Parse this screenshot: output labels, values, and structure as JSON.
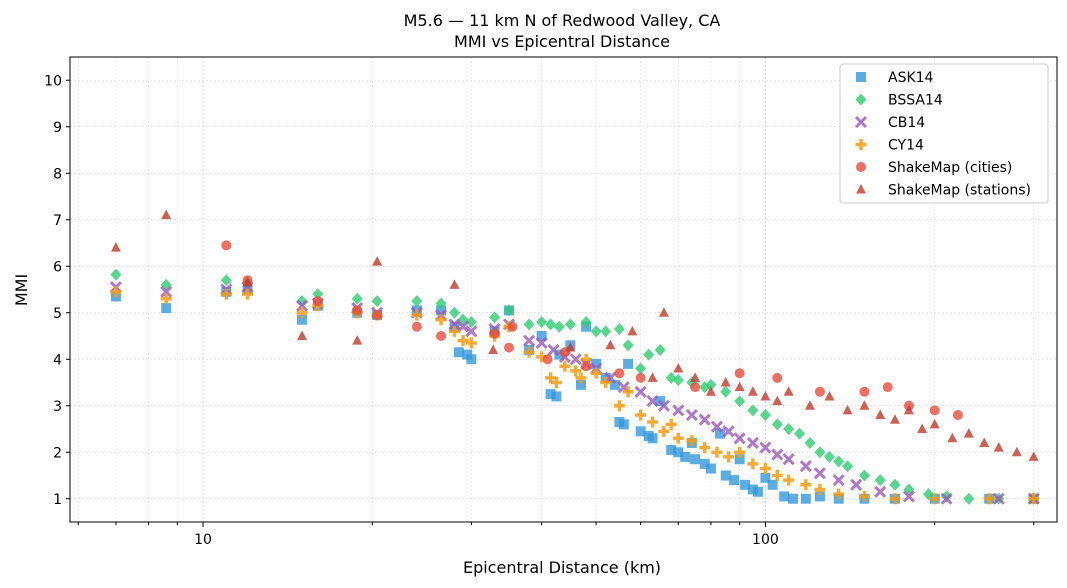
{
  "chart_data": {
    "type": "scatter",
    "title": "M5.6 — 11 km N of Redwood Valley, CA",
    "subtitle": "MMI vs Epicentral Distance",
    "xlabel": "Epicentral Distance (km)",
    "ylabel": "MMI",
    "xscale": "log",
    "xlim": [
      5.8,
      330
    ],
    "ylim": [
      0.5,
      10.5
    ],
    "xticks": [
      {
        "value": 10,
        "label": "10"
      },
      {
        "value": 100,
        "label": "100"
      }
    ],
    "yticks": [
      1,
      2,
      3,
      4,
      5,
      6,
      7,
      8,
      9,
      10
    ],
    "grid": true,
    "legend_position": "top-right",
    "series": [
      {
        "name": "ASK14",
        "marker": "square",
        "color": "#3498db",
        "points": [
          [
            7.0,
            5.35
          ],
          [
            8.6,
            5.1
          ],
          [
            11.0,
            5.45
          ],
          [
            12.0,
            5.5
          ],
          [
            15.0,
            4.85
          ],
          [
            16.0,
            5.15
          ],
          [
            18.8,
            5.0
          ],
          [
            20.4,
            4.95
          ],
          [
            24.0,
            5.05
          ],
          [
            26.5,
            5.05
          ],
          [
            28.0,
            4.7
          ],
          [
            28.5,
            4.15
          ],
          [
            29.5,
            4.1
          ],
          [
            30.0,
            4.0
          ],
          [
            33.0,
            4.6
          ],
          [
            35.0,
            5.05
          ],
          [
            38.0,
            4.2
          ],
          [
            40.0,
            4.5
          ],
          [
            41.5,
            3.25
          ],
          [
            42.5,
            3.2
          ],
          [
            43.0,
            4.1
          ],
          [
            45.0,
            4.3
          ],
          [
            47.0,
            3.45
          ],
          [
            48.0,
            4.7
          ],
          [
            50.0,
            3.9
          ],
          [
            52.0,
            3.6
          ],
          [
            54.0,
            3.45
          ],
          [
            55.0,
            2.65
          ],
          [
            56.0,
            2.6
          ],
          [
            57.0,
            3.9
          ],
          [
            60.0,
            2.45
          ],
          [
            62.0,
            2.35
          ],
          [
            63.0,
            2.3
          ],
          [
            65.0,
            3.1
          ],
          [
            68.0,
            2.05
          ],
          [
            70.0,
            2.0
          ],
          [
            72.0,
            1.9
          ],
          [
            74.0,
            2.2
          ],
          [
            75.0,
            1.85
          ],
          [
            78.0,
            1.75
          ],
          [
            80.0,
            1.65
          ],
          [
            83.0,
            2.4
          ],
          [
            85.0,
            1.5
          ],
          [
            88.0,
            1.4
          ],
          [
            90.0,
            1.85
          ],
          [
            92.0,
            1.3
          ],
          [
            95.0,
            1.2
          ],
          [
            97.0,
            1.15
          ],
          [
            100.0,
            1.45
          ],
          [
            103.0,
            1.3
          ],
          [
            108.0,
            1.05
          ],
          [
            112.0,
            1.0
          ],
          [
            118.0,
            1.0
          ],
          [
            125.0,
            1.05
          ],
          [
            135.0,
            1.0
          ],
          [
            150.0,
            1.0
          ],
          [
            170.0,
            1.0
          ],
          [
            200.0,
            1.0
          ],
          [
            250.0,
            1.0
          ],
          [
            300.0,
            1.0
          ]
        ]
      },
      {
        "name": "BSSA14",
        "marker": "diamond",
        "color": "#2ecc71",
        "points": [
          [
            7.0,
            5.82
          ],
          [
            8.6,
            5.6
          ],
          [
            11.0,
            5.7
          ],
          [
            12.0,
            5.65
          ],
          [
            15.0,
            5.25
          ],
          [
            16.0,
            5.4
          ],
          [
            18.8,
            5.3
          ],
          [
            20.4,
            5.25
          ],
          [
            24.0,
            5.25
          ],
          [
            26.5,
            5.2
          ],
          [
            28.0,
            5.0
          ],
          [
            29.0,
            4.85
          ],
          [
            30.0,
            4.8
          ],
          [
            33.0,
            4.9
          ],
          [
            35.0,
            5.05
          ],
          [
            38.0,
            4.75
          ],
          [
            40.0,
            4.8
          ],
          [
            41.5,
            4.75
          ],
          [
            43.0,
            4.7
          ],
          [
            45.0,
            4.75
          ],
          [
            48.0,
            4.8
          ],
          [
            50.0,
            4.6
          ],
          [
            52.0,
            4.6
          ],
          [
            55.0,
            4.65
          ],
          [
            57.0,
            4.3
          ],
          [
            60.0,
            3.8
          ],
          [
            62.0,
            4.1
          ],
          [
            65.0,
            4.2
          ],
          [
            68.0,
            3.6
          ],
          [
            70.0,
            3.55
          ],
          [
            74.0,
            3.5
          ],
          [
            78.0,
            3.4
          ],
          [
            80.0,
            3.45
          ],
          [
            85.0,
            3.3
          ],
          [
            90.0,
            3.1
          ],
          [
            95.0,
            2.9
          ],
          [
            100.0,
            2.8
          ],
          [
            105.0,
            2.6
          ],
          [
            110.0,
            2.5
          ],
          [
            115.0,
            2.4
          ],
          [
            120.0,
            2.2
          ],
          [
            125.0,
            2.0
          ],
          [
            130.0,
            1.9
          ],
          [
            135.0,
            1.8
          ],
          [
            140.0,
            1.7
          ],
          [
            150.0,
            1.5
          ],
          [
            160.0,
            1.4
          ],
          [
            170.0,
            1.3
          ],
          [
            180.0,
            1.2
          ],
          [
            195.0,
            1.1
          ],
          [
            210.0,
            1.05
          ],
          [
            230.0,
            1.0
          ],
          [
            260.0,
            1.0
          ],
          [
            300.0,
            1.0
          ]
        ]
      },
      {
        "name": "CB14",
        "marker": "x",
        "color": "#9b59b6",
        "points": [
          [
            7.0,
            5.55
          ],
          [
            8.6,
            5.45
          ],
          [
            11.0,
            5.5
          ],
          [
            12.0,
            5.55
          ],
          [
            15.0,
            5.15
          ],
          [
            16.0,
            5.2
          ],
          [
            18.8,
            5.1
          ],
          [
            20.4,
            5.0
          ],
          [
            24.0,
            5.0
          ],
          [
            26.5,
            4.95
          ],
          [
            28.0,
            4.75
          ],
          [
            29.0,
            4.7
          ],
          [
            30.0,
            4.6
          ],
          [
            33.0,
            4.65
          ],
          [
            35.0,
            4.75
          ],
          [
            38.0,
            4.4
          ],
          [
            40.0,
            4.35
          ],
          [
            42.0,
            4.2
          ],
          [
            44.0,
            4.05
          ],
          [
            46.0,
            4.0
          ],
          [
            48.0,
            3.9
          ],
          [
            50.0,
            3.8
          ],
          [
            53.0,
            3.6
          ],
          [
            56.0,
            3.4
          ],
          [
            60.0,
            3.3
          ],
          [
            63.0,
            3.1
          ],
          [
            66.0,
            3.0
          ],
          [
            70.0,
            2.9
          ],
          [
            74.0,
            2.8
          ],
          [
            78.0,
            2.7
          ],
          [
            82.0,
            2.55
          ],
          [
            86.0,
            2.45
          ],
          [
            90.0,
            2.3
          ],
          [
            95.0,
            2.2
          ],
          [
            100.0,
            2.1
          ],
          [
            105.0,
            1.95
          ],
          [
            110.0,
            1.85
          ],
          [
            118.0,
            1.7
          ],
          [
            125.0,
            1.55
          ],
          [
            135.0,
            1.4
          ],
          [
            145.0,
            1.3
          ],
          [
            160.0,
            1.15
          ],
          [
            180.0,
            1.05
          ],
          [
            210.0,
            1.0
          ],
          [
            260.0,
            1.0
          ],
          [
            300.0,
            1.0
          ]
        ]
      },
      {
        "name": "CY14",
        "marker": "plus",
        "color": "#f39c12",
        "points": [
          [
            7.0,
            5.45
          ],
          [
            8.6,
            5.3
          ],
          [
            11.0,
            5.4
          ],
          [
            12.0,
            5.4
          ],
          [
            15.0,
            5.0
          ],
          [
            16.0,
            5.15
          ],
          [
            18.8,
            5.0
          ],
          [
            20.4,
            4.95
          ],
          [
            24.0,
            4.95
          ],
          [
            26.5,
            4.85
          ],
          [
            28.0,
            4.6
          ],
          [
            29.0,
            4.4
          ],
          [
            30.0,
            4.35
          ],
          [
            33.0,
            4.5
          ],
          [
            35.0,
            4.7
          ],
          [
            38.0,
            4.15
          ],
          [
            40.0,
            4.05
          ],
          [
            41.5,
            3.6
          ],
          [
            42.5,
            3.5
          ],
          [
            44.0,
            3.85
          ],
          [
            46.0,
            3.75
          ],
          [
            47.0,
            3.6
          ],
          [
            48.0,
            4.0
          ],
          [
            50.0,
            3.7
          ],
          [
            52.0,
            3.5
          ],
          [
            55.0,
            3.0
          ],
          [
            57.0,
            3.3
          ],
          [
            60.0,
            2.8
          ],
          [
            63.0,
            2.65
          ],
          [
            66.0,
            2.45
          ],
          [
            68.0,
            2.6
          ],
          [
            70.0,
            2.3
          ],
          [
            74.0,
            2.25
          ],
          [
            78.0,
            2.1
          ],
          [
            82.0,
            2.0
          ],
          [
            86.0,
            1.9
          ],
          [
            90.0,
            2.0
          ],
          [
            95.0,
            1.75
          ],
          [
            100.0,
            1.65
          ],
          [
            105.0,
            1.5
          ],
          [
            110.0,
            1.4
          ],
          [
            118.0,
            1.3
          ],
          [
            125.0,
            1.2
          ],
          [
            135.0,
            1.1
          ],
          [
            150.0,
            1.05
          ],
          [
            170.0,
            1.0
          ],
          [
            200.0,
            1.0
          ],
          [
            250.0,
            1.0
          ],
          [
            300.0,
            1.0
          ]
        ]
      },
      {
        "name": "ShakeMap (cities)",
        "marker": "circle",
        "color": "#e74c3c",
        "points": [
          [
            11.0,
            6.45
          ],
          [
            12.0,
            5.7
          ],
          [
            16.0,
            5.25
          ],
          [
            18.8,
            5.05
          ],
          [
            20.4,
            4.95
          ],
          [
            24.0,
            4.7
          ],
          [
            26.5,
            4.5
          ],
          [
            33.0,
            4.55
          ],
          [
            35.0,
            4.25
          ],
          [
            35.5,
            4.7
          ],
          [
            41.0,
            4.0
          ],
          [
            44.0,
            4.15
          ],
          [
            48.0,
            3.85
          ],
          [
            55.0,
            3.7
          ],
          [
            60.0,
            3.6
          ],
          [
            75.0,
            3.4
          ],
          [
            90.0,
            3.7
          ],
          [
            105.0,
            3.6
          ],
          [
            125.0,
            3.3
          ],
          [
            150.0,
            3.3
          ],
          [
            165.0,
            3.4
          ],
          [
            180.0,
            3.0
          ],
          [
            200.0,
            2.9
          ],
          [
            220.0,
            2.8
          ]
        ]
      },
      {
        "name": "ShakeMap (stations)",
        "marker": "triangle",
        "color": "#c0392b",
        "points": [
          [
            7.0,
            6.4
          ],
          [
            8.6,
            7.1
          ],
          [
            12.0,
            5.65
          ],
          [
            15.0,
            4.5
          ],
          [
            18.8,
            4.4
          ],
          [
            20.4,
            6.1
          ],
          [
            28.0,
            5.6
          ],
          [
            32.8,
            4.2
          ],
          [
            45.0,
            4.25
          ],
          [
            53.0,
            4.3
          ],
          [
            58.0,
            4.6
          ],
          [
            63.0,
            3.6
          ],
          [
            66.0,
            5.0
          ],
          [
            70.0,
            3.8
          ],
          [
            75.0,
            3.6
          ],
          [
            80.0,
            3.3
          ],
          [
            85.0,
            3.5
          ],
          [
            90.0,
            3.4
          ],
          [
            95.0,
            3.3
          ],
          [
            100.0,
            3.2
          ],
          [
            105.0,
            3.1
          ],
          [
            110.0,
            3.3
          ],
          [
            120.0,
            3.0
          ],
          [
            130.0,
            3.2
          ],
          [
            140.0,
            2.9
          ],
          [
            150.0,
            3.0
          ],
          [
            160.0,
            2.8
          ],
          [
            170.0,
            2.7
          ],
          [
            180.0,
            2.9
          ],
          [
            190.0,
            2.5
          ],
          [
            200.0,
            2.6
          ],
          [
            215.0,
            2.3
          ],
          [
            230.0,
            2.4
          ],
          [
            245.0,
            2.2
          ],
          [
            260.0,
            2.1
          ],
          [
            280.0,
            2.0
          ],
          [
            300.0,
            1.9
          ]
        ]
      }
    ]
  }
}
